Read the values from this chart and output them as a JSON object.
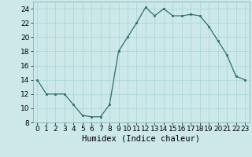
{
  "x": [
    0,
    1,
    2,
    3,
    4,
    5,
    6,
    7,
    8,
    9,
    10,
    11,
    12,
    13,
    14,
    15,
    16,
    17,
    18,
    19,
    20,
    21,
    22,
    23
  ],
  "y": [
    14,
    12,
    12,
    12,
    10.5,
    9,
    8.8,
    8.8,
    10.5,
    18,
    20,
    22,
    24.2,
    23,
    24,
    23,
    23,
    23.2,
    23,
    21.5,
    19.5,
    17.5,
    14.5,
    14
  ],
  "line_color": "#2e6e6e",
  "marker_color": "#2e6e6e",
  "bg_color": "#cce8e8",
  "grid_color": "#aad4d4",
  "xlabel": "Humidex (Indice chaleur)",
  "xlim": [
    -0.5,
    23.5
  ],
  "ylim": [
    8,
    25
  ],
  "yticks": [
    8,
    10,
    12,
    14,
    16,
    18,
    20,
    22,
    24
  ],
  "xticks": [
    0,
    1,
    2,
    3,
    4,
    5,
    6,
    7,
    8,
    9,
    10,
    11,
    12,
    13,
    14,
    15,
    16,
    17,
    18,
    19,
    20,
    21,
    22,
    23
  ],
  "xlabel_fontsize": 7.5,
  "tick_fontsize": 6.5
}
